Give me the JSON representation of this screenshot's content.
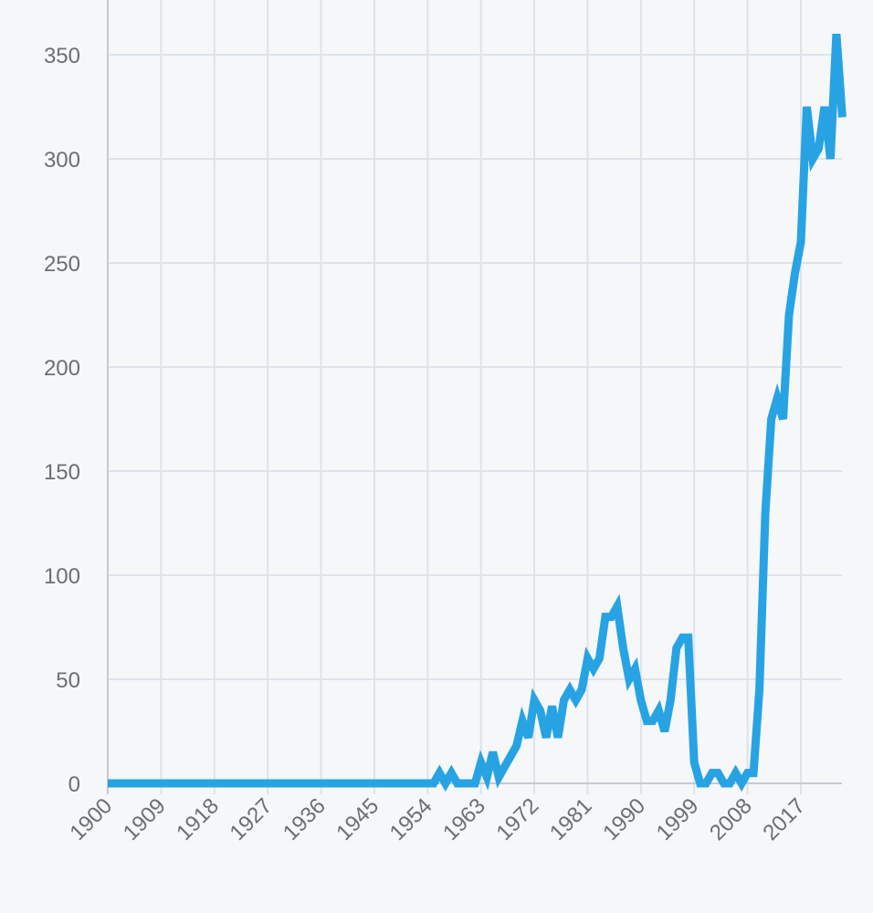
{
  "chart_data": {
    "type": "line",
    "title": "",
    "xlabel": "",
    "ylabel": "",
    "xlim": [
      1900,
      2024
    ],
    "ylim": [
      0,
      350
    ],
    "grid": true,
    "x_ticks": [
      "1900",
      "1909",
      "1918",
      "1927",
      "1936",
      "1945",
      "1954",
      "1963",
      "1972",
      "1981",
      "1990",
      "1999",
      "2008",
      "2017"
    ],
    "y_ticks": [
      "0",
      "50",
      "100",
      "150",
      "200",
      "250",
      "300",
      "350"
    ],
    "colors": {
      "line": "#27a3e3",
      "grid": "#dde3e8",
      "axis": "#c5cad0",
      "background": "#f5f7f9"
    },
    "series": [
      {
        "x": [
          1900,
          1954,
          1955,
          1956,
          1957,
          1958,
          1959,
          1960,
          1961,
          1962,
          1963,
          1964,
          1965,
          1966,
          1967,
          1968,
          1969,
          1970,
          1971,
          1972,
          1973,
          1974,
          1975,
          1976,
          1977,
          1978,
          1979,
          1980,
          1981,
          1982,
          1983,
          1984,
          1985,
          1986,
          1987,
          1988,
          1989,
          1990,
          1991,
          1992,
          1993,
          1994,
          1995,
          1996,
          1997,
          1998,
          1999,
          2000,
          2001,
          2002,
          2003,
          2004,
          2005,
          2006,
          2007,
          2008,
          2009,
          2010,
          2011,
          2012,
          2013,
          2014,
          2015,
          2016,
          2017,
          2018,
          2019,
          2020,
          2021,
          2022,
          2023,
          2024
        ],
        "y": [
          0,
          0,
          0,
          5,
          0,
          5,
          0,
          0,
          0,
          0,
          10,
          3,
          15,
          3,
          8,
          13,
          18,
          30,
          22,
          40,
          35,
          22,
          37,
          22,
          40,
          45,
          40,
          45,
          60,
          55,
          60,
          80,
          80,
          85,
          65,
          50,
          55,
          40,
          30,
          30,
          35,
          25,
          40,
          65,
          70,
          70,
          10,
          0,
          0,
          5,
          5,
          0,
          0,
          5,
          0,
          5,
          5,
          45,
          130,
          175,
          185,
          175,
          225,
          245,
          260,
          325,
          300,
          305,
          325,
          300,
          360,
          320
        ]
      }
    ]
  }
}
